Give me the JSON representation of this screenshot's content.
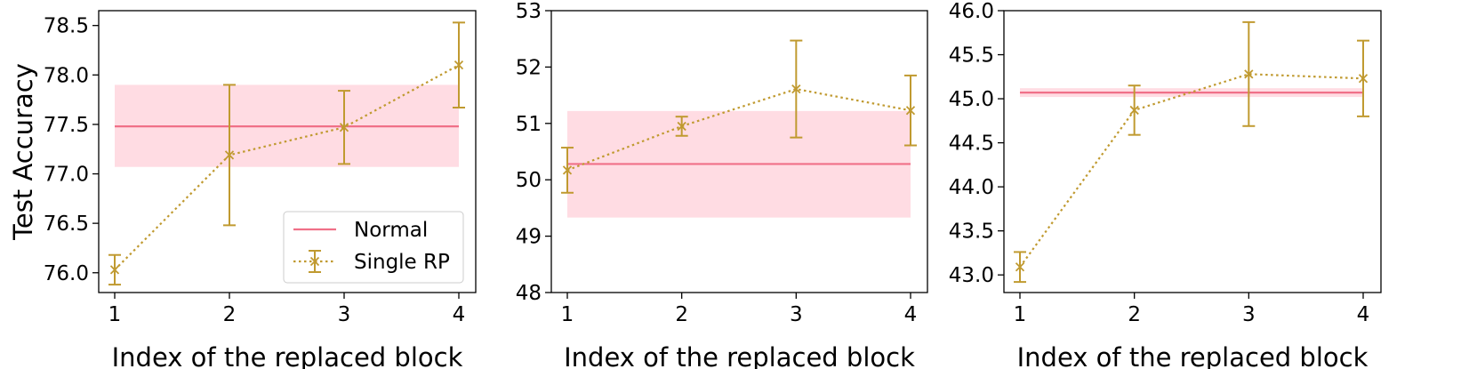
{
  "colors": {
    "normal": "#f07088",
    "band": "#ffdce3",
    "single_rp": "#c09a30",
    "axis": "#000000"
  },
  "legend": {
    "items": [
      "Normal",
      "Single RP"
    ],
    "placement": "lower-right"
  },
  "ylabel": "Test Accuracy",
  "chart_data": [
    {
      "type": "line",
      "xlabel": "Index of the replaced block",
      "ylabel": "Test Accuracy",
      "x": [
        1,
        2,
        3,
        4
      ],
      "x_ticks": [
        "1",
        "2",
        "3",
        "4"
      ],
      "ylim": [
        75.8,
        78.65
      ],
      "y_ticks": [
        "76.0",
        "76.5",
        "77.0",
        "77.5",
        "78.0",
        "78.5"
      ],
      "normal": {
        "value": 77.48,
        "band": [
          77.07,
          77.9
        ]
      },
      "series": [
        {
          "name": "Single RP",
          "values": [
            76.03,
            77.19,
            77.47,
            78.1
          ],
          "errors": [
            0.15,
            0.71,
            0.37,
            0.43
          ]
        }
      ],
      "legend": true,
      "grid": false
    },
    {
      "type": "line",
      "xlabel": "Index of the replaced block",
      "ylabel": "",
      "x": [
        1,
        2,
        3,
        4
      ],
      "x_ticks": [
        "1",
        "2",
        "3",
        "4"
      ],
      "ylim": [
        48.0,
        53.0
      ],
      "y_ticks": [
        "48",
        "49",
        "50",
        "51",
        "52",
        "53"
      ],
      "normal": {
        "value": 50.28,
        "band": [
          49.33,
          51.22
        ]
      },
      "series": [
        {
          "name": "Single RP",
          "values": [
            50.17,
            50.95,
            51.61,
            51.23
          ],
          "errors": [
            0.4,
            0.17,
            0.86,
            0.62
          ]
        }
      ],
      "legend": false,
      "grid": false
    },
    {
      "type": "line",
      "xlabel": "Index of the replaced block",
      "ylabel": "",
      "x": [
        1,
        2,
        3,
        4
      ],
      "x_ticks": [
        "1",
        "2",
        "3",
        "4"
      ],
      "ylim": [
        42.8,
        46.0
      ],
      "y_ticks": [
        "43.0",
        "43.5",
        "44.0",
        "44.5",
        "45.0",
        "45.5",
        "46.0"
      ],
      "normal": {
        "value": 45.07,
        "band": [
          45.02,
          45.12
        ]
      },
      "series": [
        {
          "name": "Single RP",
          "values": [
            43.09,
            44.87,
            45.28,
            45.23
          ],
          "errors": [
            0.17,
            0.28,
            0.59,
            0.43
          ]
        }
      ],
      "legend": false,
      "grid": false
    }
  ]
}
